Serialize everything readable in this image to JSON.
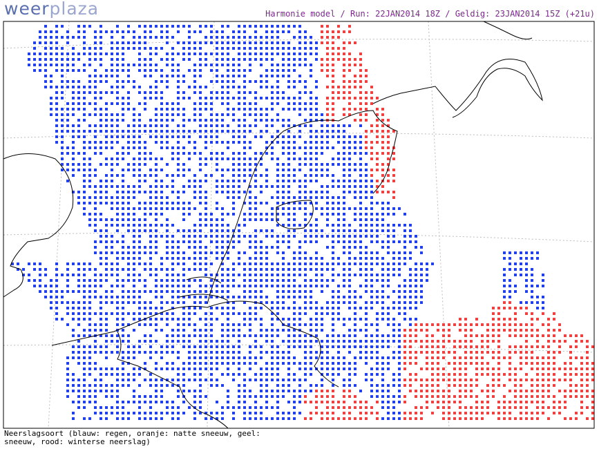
{
  "header": {
    "logo": {
      "part1": "weer",
      "part2": "plaza"
    },
    "title": "Harmonie model / Run: 22JAN2014 18Z / Geldig: 23JAN2014 15Z (+21u)"
  },
  "legend": {
    "lines": [
      "Neerslagsoort (blauw: regen, oranje: natte sneeuw, geel:",
      "sneeuw, rood: winterse neerslag)"
    ]
  }
}
